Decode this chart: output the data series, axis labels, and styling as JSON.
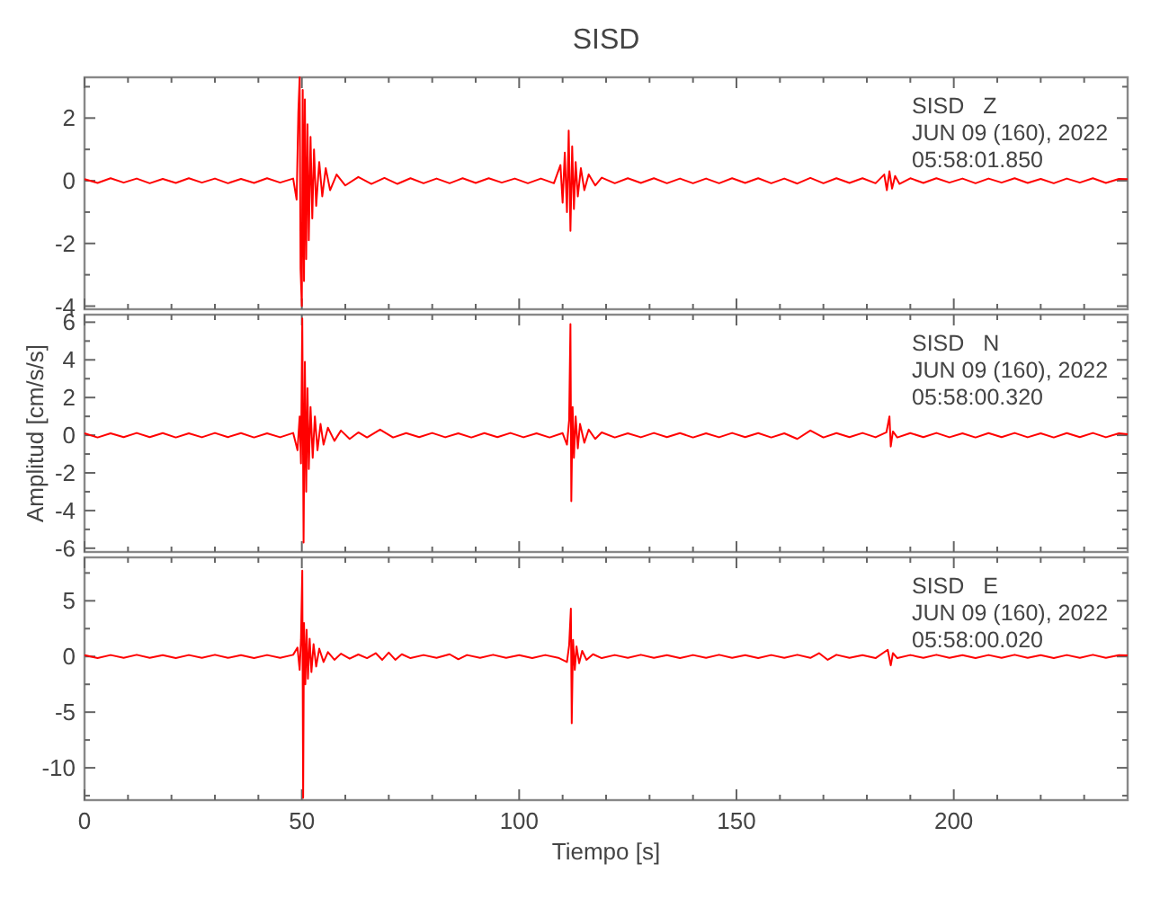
{
  "chart_data": [
    {
      "type": "line",
      "title": "SISD",
      "annotations": [
        "SISD   Z",
        "JUN 09 (160), 2022",
        "05:58:01.850"
      ],
      "tick_labels": "y",
      "xlim": [
        0,
        240
      ],
      "xticks": [
        0,
        {
          "value": 10,
          "label": null
        },
        {
          "value": 20,
          "label": null
        },
        {
          "value": 30,
          "label": null
        },
        {
          "value": 40,
          "label": null
        },
        50,
        {
          "value": 60,
          "label": null
        },
        {
          "value": 70,
          "label": null
        },
        {
          "value": 80,
          "label": null
        },
        {
          "value": 90,
          "label": null
        },
        100,
        {
          "value": 110,
          "label": null
        },
        {
          "value": 120,
          "label": null
        },
        {
          "value": 130,
          "label": null
        },
        {
          "value": 140,
          "label": null
        },
        150,
        {
          "value": 160,
          "label": null
        },
        {
          "value": 170,
          "label": null
        },
        {
          "value": 180,
          "label": null
        },
        {
          "value": 190,
          "label": null
        },
        200,
        {
          "value": 210,
          "label": null
        },
        {
          "value": 220,
          "label": null
        },
        {
          "value": 230,
          "label": null
        }
      ],
      "ylim": [
        -4.1,
        3.3
      ],
      "yticks": [
        -4,
        {
          "value": -3,
          "label": null
        },
        -2,
        {
          "value": -1,
          "label": null
        },
        0,
        {
          "value": 1,
          "label": null
        },
        2,
        {
          "value": 3,
          "label": null
        }
      ],
      "series": [
        {
          "color": "#ff0000",
          "x": [
            0,
            3,
            6,
            9,
            12,
            15,
            18,
            21,
            24,
            27,
            30,
            33,
            36,
            39,
            42,
            45,
            48,
            48.8,
            49.2,
            49.5,
            49.7,
            50.0,
            50.2,
            50.5,
            50.7,
            51.0,
            51.3,
            51.6,
            52.0,
            52.4,
            52.8,
            53.3,
            54,
            54.7,
            55.5,
            56.5,
            58,
            60,
            63,
            66,
            69,
            72,
            75,
            78,
            81,
            84,
            87,
            90,
            93,
            96,
            99,
            102,
            105,
            108,
            109.5,
            110,
            110.5,
            111,
            111.4,
            111.8,
            112.2,
            112.6,
            113,
            113.5,
            114.2,
            115,
            116,
            117.5,
            119,
            122,
            125,
            128,
            131,
            134,
            137,
            140,
            143,
            146,
            149,
            152,
            155,
            158,
            161,
            164,
            167,
            170,
            173,
            176,
            179,
            182,
            184,
            184.6,
            185.2,
            185.8,
            186.5,
            187.5,
            190,
            193,
            196,
            199,
            202,
            205,
            208,
            211,
            214,
            217,
            220,
            223,
            226,
            229,
            232,
            235,
            238,
            240
          ],
          "values": [
            0.05,
            -0.07,
            0.08,
            -0.06,
            0.07,
            -0.08,
            0.06,
            -0.07,
            0.08,
            -0.06,
            0.07,
            -0.08,
            0.06,
            -0.07,
            0.08,
            -0.06,
            0.07,
            -0.6,
            2.2,
            3.3,
            -2.8,
            -4.0,
            2.9,
            -3.2,
            2.6,
            -2.5,
            1.8,
            -1.9,
            1.4,
            -1.2,
            1.0,
            -0.8,
            0.6,
            -0.5,
            0.4,
            -0.3,
            0.2,
            -0.15,
            0.12,
            -0.1,
            0.09,
            -0.1,
            0.08,
            -0.08,
            0.07,
            -0.08,
            0.08,
            -0.07,
            0.08,
            -0.06,
            0.07,
            -0.08,
            0.07,
            -0.08,
            0.5,
            -0.7,
            0.9,
            -1.0,
            1.6,
            -1.6,
            1.1,
            -0.9,
            0.6,
            -0.5,
            0.4,
            -0.3,
            0.2,
            -0.15,
            0.1,
            -0.08,
            0.08,
            -0.07,
            0.08,
            -0.08,
            0.07,
            -0.08,
            0.07,
            -0.08,
            0.08,
            -0.07,
            0.08,
            -0.08,
            0.07,
            -0.09,
            0.09,
            -0.08,
            0.08,
            -0.07,
            0.08,
            -0.08,
            0.2,
            -0.3,
            0.3,
            -0.25,
            0.15,
            -0.1,
            0.08,
            -0.07,
            0.08,
            -0.06,
            0.07,
            -0.08,
            0.07,
            -0.06,
            0.08,
            -0.07,
            0.06,
            -0.08,
            0.07,
            -0.06,
            0.08,
            -0.07,
            0.06,
            0.05
          ]
        }
      ]
    },
    {
      "type": "line",
      "ylabel": "Amplitud [cm/s/s]",
      "annotations": [
        "SISD   N",
        "JUN 09 (160), 2022",
        "05:58:00.320"
      ],
      "tick_labels": "y",
      "xlim": [
        0,
        240
      ],
      "xticks": [
        0,
        {
          "value": 10,
          "label": null
        },
        {
          "value": 20,
          "label": null
        },
        {
          "value": 30,
          "label": null
        },
        {
          "value": 40,
          "label": null
        },
        50,
        {
          "value": 60,
          "label": null
        },
        {
          "value": 70,
          "label": null
        },
        {
          "value": 80,
          "label": null
        },
        {
          "value": 90,
          "label": null
        },
        100,
        {
          "value": 110,
          "label": null
        },
        {
          "value": 120,
          "label": null
        },
        {
          "value": 130,
          "label": null
        },
        {
          "value": 140,
          "label": null
        },
        150,
        {
          "value": 160,
          "label": null
        },
        {
          "value": 170,
          "label": null
        },
        {
          "value": 180,
          "label": null
        },
        {
          "value": 190,
          "label": null
        },
        200,
        {
          "value": 210,
          "label": null
        },
        {
          "value": 220,
          "label": null
        },
        {
          "value": 230,
          "label": null
        }
      ],
      "ylim": [
        -6.2,
        6.4
      ],
      "yticks": [
        -6,
        {
          "value": -5,
          "label": null
        },
        -4,
        {
          "value": -3,
          "label": null
        },
        -2,
        {
          "value": -1,
          "label": null
        },
        0,
        {
          "value": 1,
          "label": null
        },
        2,
        {
          "value": 3,
          "label": null
        },
        4,
        {
          "value": 5,
          "label": null
        },
        6
      ],
      "series": [
        {
          "color": "#ff0000",
          "x": [
            0,
            3,
            6,
            9,
            12,
            15,
            18,
            21,
            24,
            27,
            30,
            33,
            36,
            39,
            42,
            45,
            48,
            49,
            49.5,
            49.8,
            50.1,
            50.4,
            50.7,
            51,
            51.3,
            51.6,
            52,
            52.5,
            53,
            53.6,
            54.3,
            55,
            56,
            57.5,
            59,
            61,
            63,
            65,
            68,
            71,
            74,
            77,
            80,
            83,
            86,
            89,
            92,
            95,
            98,
            101,
            104,
            107,
            110,
            111,
            111.5,
            111.8,
            112.0,
            112.3,
            112.6,
            113,
            113.5,
            114,
            115,
            116,
            117.5,
            119,
            122,
            125,
            128,
            131,
            134,
            137,
            140,
            143,
            146,
            149,
            152,
            155,
            158,
            161,
            164,
            167,
            170,
            173,
            176,
            179,
            182,
            184.5,
            185.2,
            185.5,
            186,
            187,
            190,
            193,
            196,
            199,
            202,
            205,
            208,
            211,
            214,
            217,
            220,
            223,
            226,
            229,
            232,
            235,
            238,
            240
          ],
          "values": [
            0.1,
            -0.12,
            0.1,
            -0.1,
            0.12,
            -0.1,
            0.11,
            -0.12,
            0.1,
            -0.11,
            0.12,
            -0.1,
            0.11,
            -0.12,
            0.1,
            -0.11,
            0.12,
            -0.8,
            1.0,
            -1.5,
            6.2,
            -5.7,
            3.9,
            -3.0,
            2.5,
            -1.8,
            1.5,
            -1.2,
            1.0,
            -0.8,
            0.6,
            -0.5,
            0.4,
            -0.3,
            0.25,
            -0.2,
            0.15,
            -0.12,
            0.3,
            -0.12,
            0.11,
            -0.1,
            0.12,
            -0.11,
            0.1,
            -0.12,
            0.11,
            -0.1,
            0.12,
            -0.11,
            0.1,
            -0.12,
            0.11,
            -0.5,
            0.8,
            5.9,
            -3.5,
            1.5,
            -1.2,
            1.0,
            -0.7,
            0.6,
            -0.4,
            0.3,
            -0.2,
            0.15,
            -0.12,
            0.1,
            -0.11,
            0.12,
            -0.1,
            0.11,
            -0.12,
            0.1,
            -0.11,
            0.12,
            -0.1,
            0.11,
            -0.12,
            0.1,
            -0.2,
            0.25,
            -0.12,
            0.11,
            -0.1,
            0.12,
            -0.11,
            0.15,
            1.0,
            -0.6,
            0.2,
            -0.12,
            0.11,
            -0.1,
            0.12,
            -0.11,
            0.1,
            -0.12,
            0.11,
            -0.1,
            0.12,
            -0.11,
            0.1,
            -0.12,
            0.11,
            -0.1,
            0.12,
            -0.11,
            0.1,
            0.05
          ]
        }
      ]
    },
    {
      "type": "line",
      "xlabel": "Tiempo [s]",
      "annotations": [
        "SISD   E",
        "JUN 09 (160), 2022",
        "05:58:00.020"
      ],
      "xlim": [
        0,
        240
      ],
      "xticks": [
        0,
        {
          "value": 10,
          "label": null
        },
        {
          "value": 20,
          "label": null
        },
        {
          "value": 30,
          "label": null
        },
        {
          "value": 40,
          "label": null
        },
        50,
        {
          "value": 60,
          "label": null
        },
        {
          "value": 70,
          "label": null
        },
        {
          "value": 80,
          "label": null
        },
        {
          "value": 90,
          "label": null
        },
        100,
        {
          "value": 110,
          "label": null
        },
        {
          "value": 120,
          "label": null
        },
        {
          "value": 130,
          "label": null
        },
        {
          "value": 140,
          "label": null
        },
        150,
        {
          "value": 160,
          "label": null
        },
        {
          "value": 170,
          "label": null
        },
        {
          "value": 180,
          "label": null
        },
        {
          "value": 190,
          "label": null
        },
        200,
        {
          "value": 210,
          "label": null
        },
        {
          "value": 220,
          "label": null
        },
        {
          "value": 230,
          "label": null
        }
      ],
      "ylim": [
        -12.9,
        8.9
      ],
      "yticks": [
        {
          "value": -12.5,
          "label": null
        },
        -10,
        {
          "value": -7.5,
          "label": null
        },
        -5,
        {
          "value": -2.5,
          "label": null
        },
        0,
        {
          "value": 2.5,
          "label": null
        },
        5,
        {
          "value": 7.5,
          "label": null
        }
      ],
      "series": [
        {
          "color": "#ff0000",
          "x": [
            0,
            3,
            6,
            9,
            12,
            15,
            18,
            21,
            24,
            27,
            30,
            33,
            36,
            39,
            42,
            45,
            48,
            49,
            49.5,
            49.8,
            50.1,
            50.3,
            50.5,
            50.8,
            51.1,
            51.4,
            51.8,
            52.2,
            52.7,
            53.3,
            54,
            55,
            56,
            57.5,
            59,
            61,
            63,
            65,
            67,
            68.5,
            70,
            71.5,
            73,
            75,
            78,
            81,
            84,
            86,
            88,
            91,
            94,
            97,
            100,
            103,
            106,
            109,
            111,
            111.5,
            111.9,
            112.1,
            112.4,
            112.8,
            113.2,
            113.8,
            114.5,
            115.5,
            117,
            119,
            122,
            125,
            128,
            131,
            134,
            137,
            140,
            143,
            146,
            149,
            152,
            155,
            158,
            161,
            164,
            167,
            169,
            171,
            173,
            176,
            179,
            182,
            184.8,
            185.5,
            186,
            187,
            190,
            193,
            196,
            199,
            202,
            205,
            208,
            211,
            214,
            217,
            220,
            223,
            226,
            229,
            232,
            235,
            238,
            240
          ],
          "values": [
            0.12,
            -0.15,
            0.13,
            -0.12,
            0.15,
            -0.13,
            0.12,
            -0.15,
            0.13,
            -0.12,
            0.15,
            -0.13,
            0.12,
            -0.15,
            0.13,
            -0.12,
            0.15,
            0.8,
            -1.2,
            1.5,
            7.7,
            -12.7,
            3.0,
            -2.5,
            2.4,
            -2.0,
            1.6,
            -1.4,
            1.1,
            -0.9,
            0.7,
            -0.5,
            0.4,
            -0.3,
            0.25,
            -0.2,
            0.18,
            -0.15,
            0.3,
            -0.3,
            0.35,
            -0.3,
            0.2,
            -0.15,
            0.13,
            -0.12,
            0.2,
            -0.25,
            0.13,
            -0.12,
            0.15,
            -0.13,
            0.12,
            -0.15,
            0.13,
            -0.12,
            -0.5,
            1.0,
            4.3,
            -6.0,
            1.5,
            -1.2,
            0.9,
            -0.6,
            0.5,
            -0.3,
            0.2,
            -0.15,
            0.13,
            -0.12,
            0.15,
            -0.13,
            0.12,
            -0.15,
            0.13,
            -0.12,
            0.15,
            -0.13,
            0.12,
            -0.15,
            0.13,
            -0.12,
            0.15,
            -0.13,
            0.3,
            -0.3,
            0.15,
            -0.13,
            0.12,
            -0.15,
            0.6,
            -0.8,
            0.3,
            -0.15,
            0.13,
            -0.12,
            0.15,
            -0.13,
            0.12,
            -0.15,
            0.13,
            -0.12,
            0.15,
            -0.13,
            0.12,
            -0.15,
            0.13,
            -0.12,
            0.15,
            -0.13,
            0.12,
            0.1
          ]
        }
      ]
    }
  ]
}
